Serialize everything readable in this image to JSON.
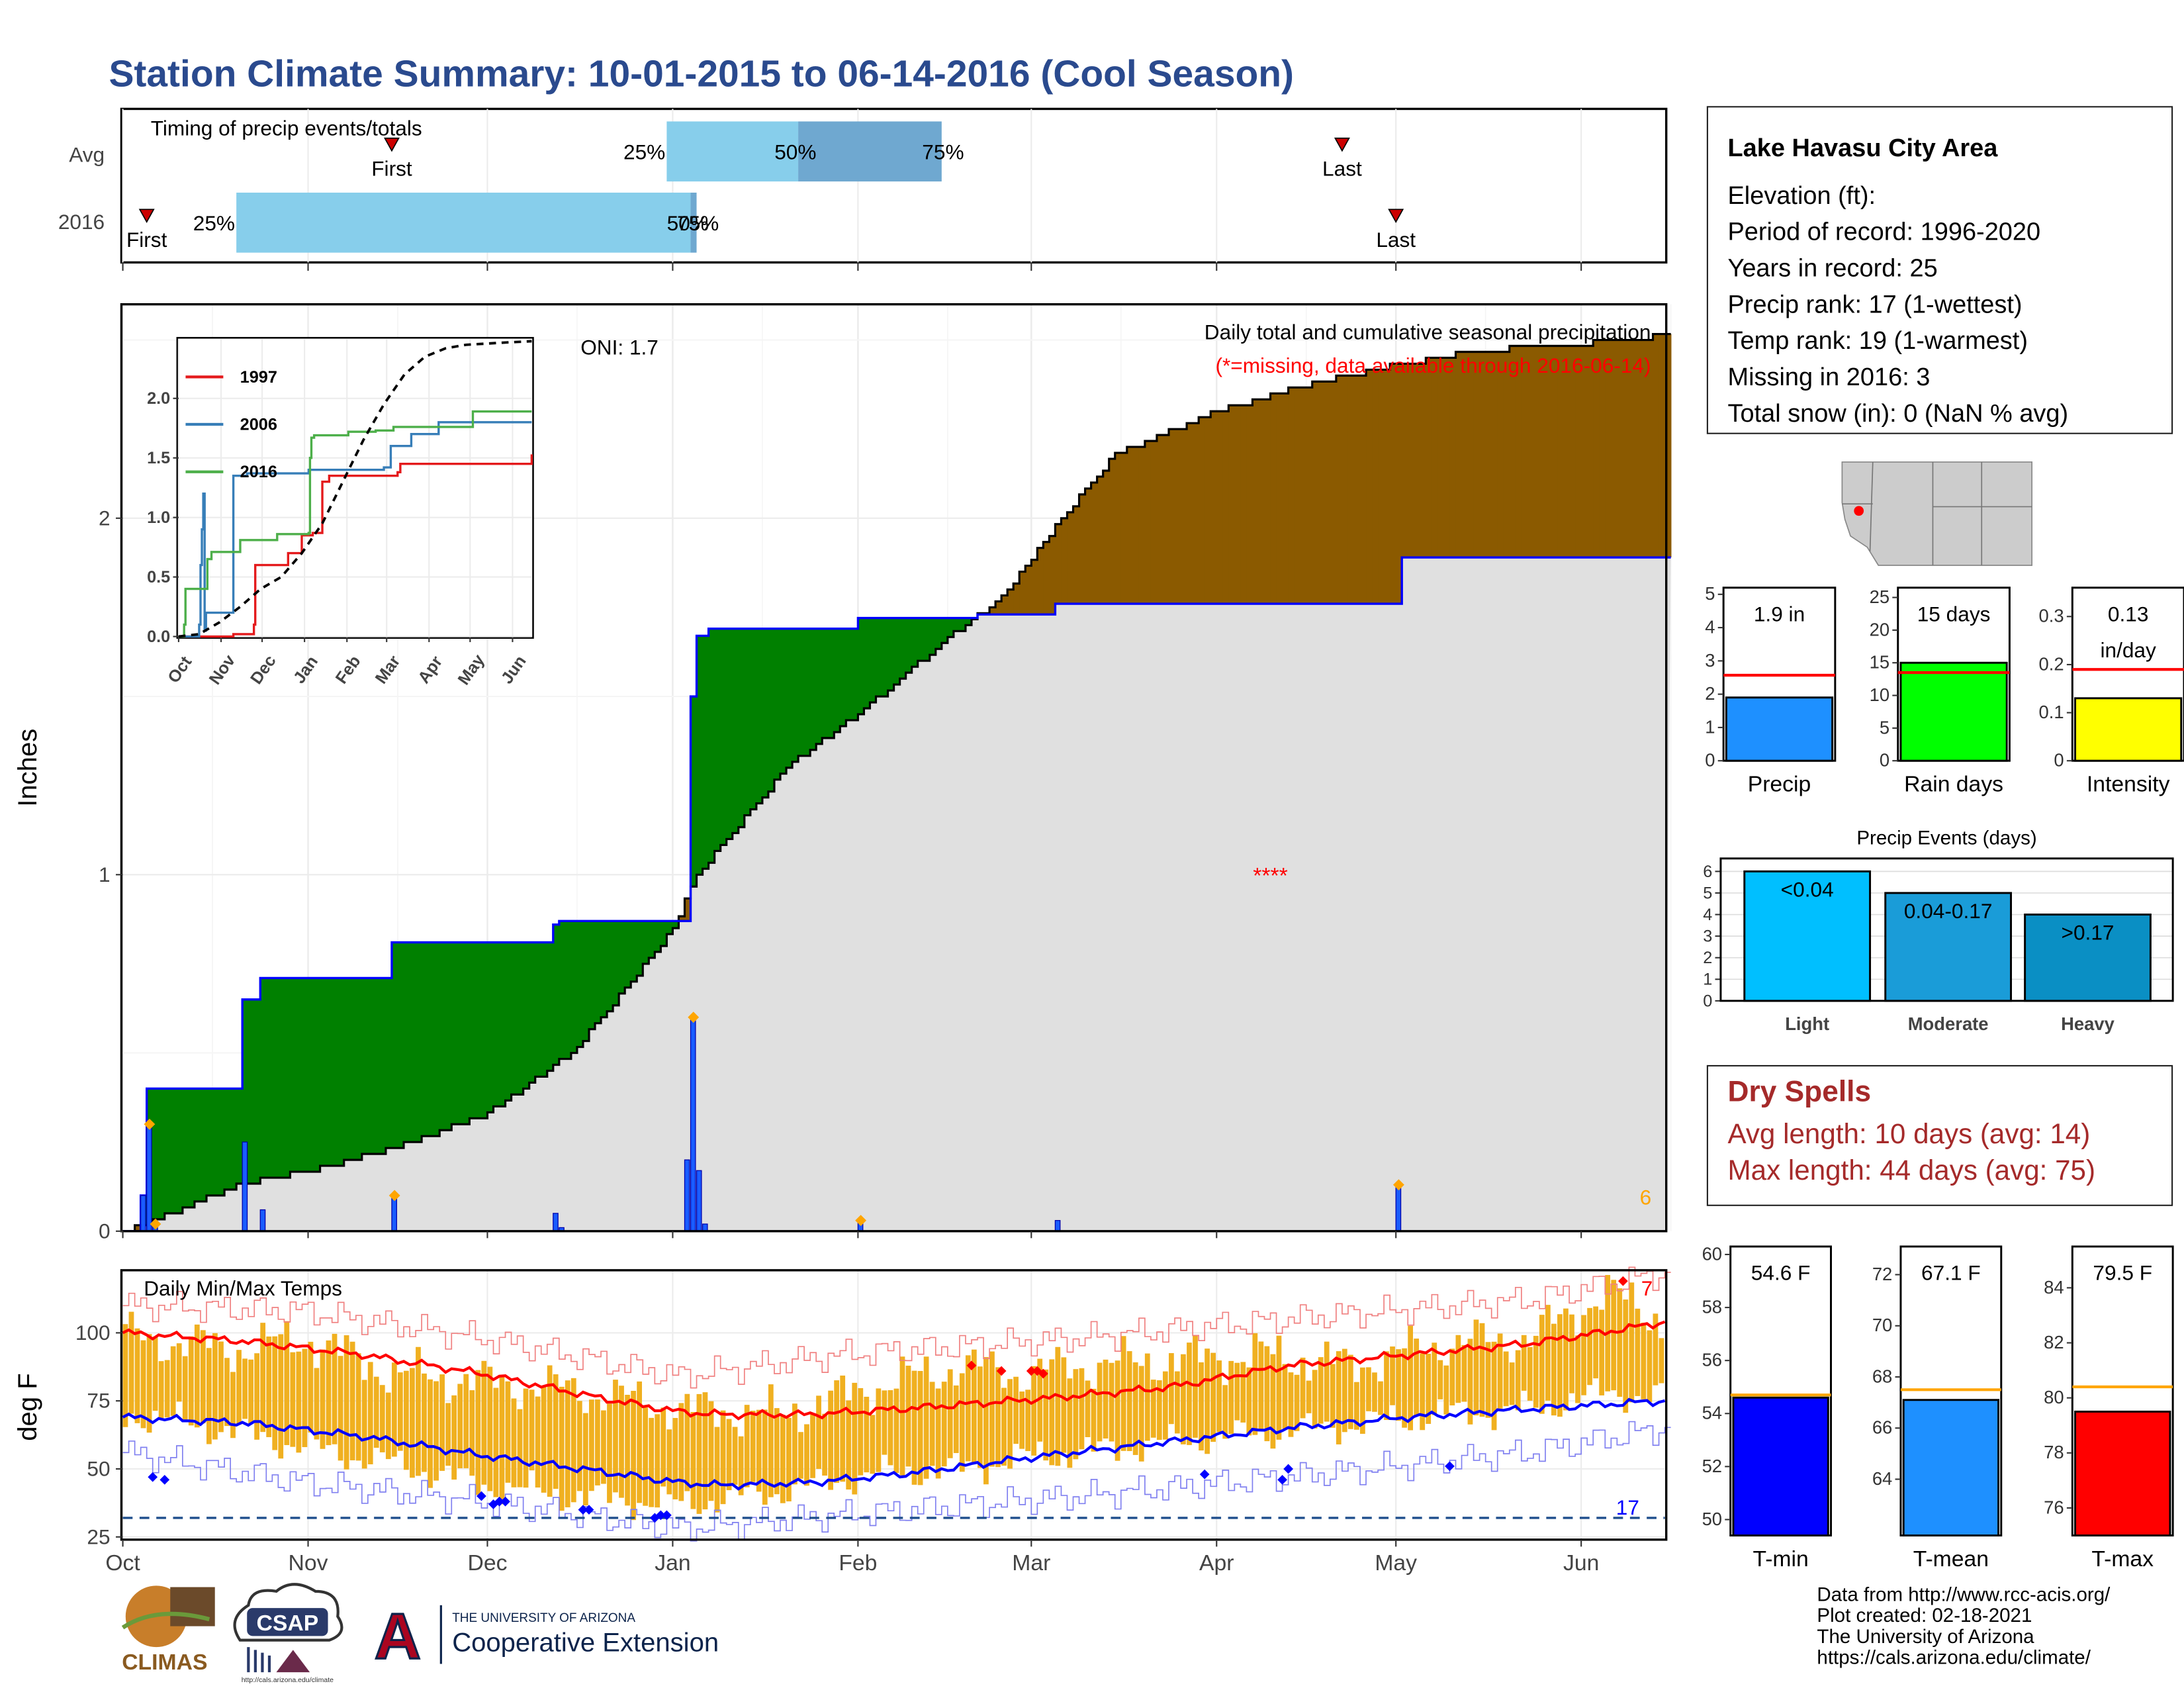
{
  "title": "Station Climate Summary: 10-01-2015 to 06-14-2016 (Cool Season)",
  "timing": {
    "label": "Timing of precip events/totals",
    "rows": [
      "Avg",
      "2016"
    ],
    "avg": {
      "first": "2015-11-15",
      "q25": "2015-12-31",
      "q50": "2016-01-22",
      "q75": "2016-02-15",
      "last": "2016-04-22"
    },
    "y2016": {
      "first": "2015-10-05",
      "q25": "2015-10-20",
      "q50": "2016-01-04",
      "q75": "2016-01-05",
      "last": "2016-05-01"
    },
    "first_label": "First",
    "last_label": "Last",
    "q25_label": "25%",
    "q50_label": "50%",
    "q75_label": "75%"
  },
  "chart_data": [
    {
      "type": "area",
      "subtitle": "Daily total and cumulative seasonal precipitation",
      "missing_note": "(*=missing, data available through 2016-06-14)",
      "oni": "ONI: 1.7",
      "ylabel": "Inches",
      "ylim": [
        0,
        2.6
      ],
      "yticks": [
        0,
        1,
        2
      ],
      "xticks": [
        "Oct",
        "Nov",
        "Dec",
        "Jan",
        "Feb",
        "Mar",
        "Apr",
        "May",
        "Jun"
      ],
      "missing_count": "6",
      "missing_marker": {
        "date": "2016-04-10",
        "value": 1.0
      },
      "cumulative_2016": [
        [
          "2015-10-01",
          0
        ],
        [
          "2015-10-04",
          0.1
        ],
        [
          "2015-10-05",
          0.4
        ],
        [
          "2015-10-20",
          0.4
        ],
        [
          "2015-10-21",
          0.65
        ],
        [
          "2015-10-24",
          0.71
        ],
        [
          "2015-11-15",
          0.81
        ],
        [
          "2015-12-12",
          0.86
        ],
        [
          "2015-12-13",
          0.87
        ],
        [
          "2016-01-03",
          0.87
        ],
        [
          "2016-01-04",
          1.5
        ],
        [
          "2016-01-05",
          1.67
        ],
        [
          "2016-01-07",
          1.69
        ],
        [
          "2016-02-01",
          1.72
        ],
        [
          "2016-02-21",
          1.73
        ],
        [
          "2016-03-05",
          1.76
        ],
        [
          "2016-05-01",
          1.76
        ],
        [
          "2016-05-02",
          1.89
        ],
        [
          "2016-06-14",
          1.89
        ]
      ],
      "cumulative_avg": [
        [
          "2015-10-01",
          0
        ],
        [
          "2015-10-05",
          0.02
        ],
        [
          "2015-10-20",
          0.13
        ],
        [
          "2015-11-01",
          0.17
        ],
        [
          "2015-11-15",
          0.23
        ],
        [
          "2015-12-01",
          0.33
        ],
        [
          "2015-12-15",
          0.5
        ],
        [
          "2015-12-25",
          0.7
        ],
        [
          "2016-01-01",
          0.85
        ],
        [
          "2016-01-05",
          1.0
        ],
        [
          "2016-01-10",
          1.1
        ],
        [
          "2016-01-20",
          1.3
        ],
        [
          "2016-02-01",
          1.45
        ],
        [
          "2016-02-15",
          1.65
        ],
        [
          "2016-02-25",
          1.78
        ],
        [
          "2016-03-05",
          1.98
        ],
        [
          "2016-03-15",
          2.18
        ],
        [
          "2016-04-01",
          2.3
        ],
        [
          "2016-04-15",
          2.37
        ],
        [
          "2016-05-01",
          2.43
        ],
        [
          "2016-05-15",
          2.47
        ],
        [
          "2016-06-01",
          2.49
        ],
        [
          "2016-06-14",
          2.51
        ]
      ],
      "daily": [
        [
          "2015-10-04",
          0.1
        ],
        [
          "2015-10-05",
          0.3
        ],
        [
          "2015-10-06",
          0.02
        ],
        [
          "2015-10-21",
          0.25
        ],
        [
          "2015-10-24",
          0.06
        ],
        [
          "2015-11-15",
          0.1
        ],
        [
          "2015-12-12",
          0.05
        ],
        [
          "2015-12-13",
          0.01
        ],
        [
          "2016-01-03",
          0.2
        ],
        [
          "2016-01-04",
          0.6
        ],
        [
          "2016-01-05",
          0.17
        ],
        [
          "2016-01-06",
          0.02
        ],
        [
          "2016-02-01",
          0.03
        ],
        [
          "2016-03-05",
          0.03
        ],
        [
          "2016-05-01",
          0.13
        ]
      ]
    },
    {
      "type": "line",
      "title": "",
      "xlabel": "",
      "ylabel": "",
      "xticks": [
        "Oct",
        "Nov",
        "Dec",
        "Jan",
        "Feb",
        "Mar",
        "Apr",
        "May",
        "Jun"
      ],
      "ylim": [
        0,
        2.45
      ],
      "yticks": [
        0.0,
        0.5,
        1.0,
        1.5,
        2.0
      ],
      "series": [
        {
          "name": "1997",
          "color": "#e41a1c",
          "values": [
            [
              0,
              0
            ],
            [
              25,
              0
            ],
            [
              40,
              0.02
            ],
            [
              55,
              0.1
            ],
            [
              56,
              0.6
            ],
            [
              80,
              0.7
            ],
            [
              90,
              0.85
            ],
            [
              98,
              0.87
            ],
            [
              105,
              1.3
            ],
            [
              110,
              1.35
            ],
            [
              160,
              1.38
            ],
            [
              162,
              1.45
            ],
            [
              258,
              1.53
            ]
          ]
        },
        {
          "name": "2006",
          "color": "#377eb8",
          "values": [
            [
              0,
              0
            ],
            [
              14,
              0
            ],
            [
              15,
              0.1
            ],
            [
              16,
              0.6
            ],
            [
              17,
              0.9
            ],
            [
              18,
              1.2
            ],
            [
              19,
              0.05
            ],
            [
              20,
              0.2
            ],
            [
              40,
              1.35
            ],
            [
              50,
              1.37
            ],
            [
              95,
              1.4
            ],
            [
              150,
              1.42
            ],
            [
              155,
              1.6
            ],
            [
              170,
              1.7
            ],
            [
              190,
              1.8
            ],
            [
              258,
              1.8
            ]
          ]
        },
        {
          "name": "2016",
          "color": "#4daf4a",
          "values": [
            [
              0,
              0
            ],
            [
              4,
              0.1
            ],
            [
              5,
              0.4
            ],
            [
              20,
              0.4
            ],
            [
              21,
              0.65
            ],
            [
              24,
              0.71
            ],
            [
              45,
              0.81
            ],
            [
              72,
              0.86
            ],
            [
              95,
              0.87
            ],
            [
              96,
              1.5
            ],
            [
              97,
              1.67
            ],
            [
              99,
              1.69
            ],
            [
              124,
              1.72
            ],
            [
              144,
              1.73
            ],
            [
              157,
              1.76
            ],
            [
              214,
              1.76
            ],
            [
              215,
              1.89
            ],
            [
              258,
              1.89
            ]
          ]
        },
        {
          "name": "Avg",
          "color": "#000000",
          "dashed": true,
          "values": [
            [
              0,
              0
            ],
            [
              15,
              0.02
            ],
            [
              30,
              0.12
            ],
            [
              45,
              0.25
            ],
            [
              60,
              0.4
            ],
            [
              75,
              0.5
            ],
            [
              90,
              0.7
            ],
            [
              105,
              0.95
            ],
            [
              120,
              1.3
            ],
            [
              135,
              1.65
            ],
            [
              150,
              1.95
            ],
            [
              165,
              2.2
            ],
            [
              180,
              2.35
            ],
            [
              195,
              2.42
            ],
            [
              210,
              2.45
            ],
            [
              240,
              2.47
            ],
            [
              258,
              2.48
            ]
          ]
        }
      ]
    },
    {
      "type": "bar",
      "title": "",
      "categories": [
        "Precip",
        "Rain days",
        "Intensity"
      ],
      "values": [
        1.9,
        15,
        0.13
      ],
      "averages": [
        2.57,
        13.5,
        0.19
      ],
      "ylims": [
        [
          0,
          5.2
        ],
        [
          0,
          26.5
        ],
        [
          0,
          0.36
        ]
      ],
      "yticks": [
        [
          0,
          1,
          2,
          3,
          4,
          5
        ],
        [
          0,
          5,
          10,
          15,
          20,
          25
        ],
        [
          0.0,
          0.1,
          0.2,
          0.3
        ]
      ],
      "labels": [
        "1.9 in",
        "15 days",
        "0.13 in/day"
      ],
      "colors": [
        "#1e90ff",
        "#00ff00",
        "#ffff00"
      ]
    },
    {
      "type": "bar",
      "title": "Precip Events (days)",
      "categories": [
        "Light",
        "Moderate",
        "Heavy"
      ],
      "values": [
        6,
        5,
        4
      ],
      "labels": [
        "<0.04",
        "0.04-0.17",
        ">0.17"
      ],
      "ylim": [
        0,
        6.6
      ],
      "yticks": [
        0,
        1,
        2,
        3,
        4,
        5,
        6
      ],
      "colors": [
        "#00bfff",
        "#1a9cd8",
        "#0a8fc4"
      ]
    },
    {
      "type": "area",
      "title": "Daily Min/Max Temps",
      "ylabel": "deg F",
      "ylim": [
        24,
        123
      ],
      "yticks": [
        25,
        50,
        75,
        100
      ],
      "xticks": [
        "Oct",
        "Nov",
        "Dec",
        "Jan",
        "Feb",
        "Mar",
        "Apr",
        "May",
        "Jun"
      ],
      "freeze_line": 32,
      "count_hot": "7",
      "count_cold": "17",
      "avg_max": [
        [
          0,
          100
        ],
        [
          20,
          97
        ],
        [
          40,
          92
        ],
        [
          60,
          85
        ],
        [
          80,
          76
        ],
        [
          93,
          71
        ],
        [
          100,
          70
        ],
        [
          115,
          70
        ],
        [
          130,
          72
        ],
        [
          155,
          76
        ],
        [
          175,
          80
        ],
        [
          195,
          88
        ],
        [
          215,
          92
        ],
        [
          235,
          96
        ],
        [
          250,
          101
        ],
        [
          258,
          104
        ]
      ],
      "avg_min": [
        [
          0,
          69
        ],
        [
          20,
          67
        ],
        [
          40,
          62
        ],
        [
          60,
          55
        ],
        [
          80,
          49
        ],
        [
          93,
          45
        ],
        [
          100,
          44
        ],
        [
          115,
          45
        ],
        [
          130,
          48
        ],
        [
          155,
          55
        ],
        [
          175,
          60
        ],
        [
          195,
          65
        ],
        [
          215,
          69
        ],
        [
          235,
          72
        ],
        [
          250,
          74
        ],
        [
          258,
          75
        ]
      ],
      "record_max": [
        [
          0,
          110
        ],
        [
          30,
          108
        ],
        [
          60,
          98
        ],
        [
          93,
          84
        ],
        [
          120,
          92
        ],
        [
          160,
          98
        ],
        [
          200,
          106
        ],
        [
          235,
          112
        ],
        [
          258,
          122
        ]
      ],
      "record_min": [
        [
          0,
          56
        ],
        [
          30,
          45
        ],
        [
          60,
          38
        ],
        [
          93,
          28
        ],
        [
          120,
          33
        ],
        [
          160,
          40
        ],
        [
          200,
          48
        ],
        [
          235,
          56
        ],
        [
          258,
          65
        ]
      ],
      "obs_max": [
        [
          0,
          99
        ],
        [
          10,
          96
        ],
        [
          20,
          94
        ],
        [
          30,
          98
        ],
        [
          45,
          85
        ],
        [
          60,
          82
        ],
        [
          75,
          79
        ],
        [
          93,
          72
        ],
        [
          110,
          70
        ],
        [
          125,
          80
        ],
        [
          140,
          88
        ],
        [
          150,
          85
        ],
        [
          160,
          88
        ],
        [
          175,
          90
        ],
        [
          190,
          92
        ],
        [
          205,
          88
        ],
        [
          220,
          96
        ],
        [
          235,
          98
        ],
        [
          248,
          115
        ],
        [
          258,
          104
        ]
      ],
      "obs_min": [
        [
          0,
          70
        ],
        [
          10,
          67
        ],
        [
          20,
          63
        ],
        [
          30,
          58
        ],
        [
          45,
          52
        ],
        [
          60,
          44
        ],
        [
          75,
          40
        ],
        [
          93,
          37
        ],
        [
          110,
          42
        ],
        [
          125,
          48
        ],
        [
          140,
          50
        ],
        [
          150,
          54
        ],
        [
          160,
          56
        ],
        [
          175,
          60
        ],
        [
          190,
          63
        ],
        [
          205,
          66
        ],
        [
          220,
          70
        ],
        [
          235,
          72
        ],
        [
          248,
          78
        ],
        [
          258,
          76
        ]
      ],
      "records_hot": [
        [
          142,
          88
        ],
        [
          147,
          86
        ],
        [
          152,
          86
        ],
        [
          153,
          86
        ],
        [
          154,
          85
        ],
        [
          251,
          119
        ]
      ],
      "records_cold": [
        [
          5,
          47
        ],
        [
          7,
          46
        ],
        [
          60,
          40
        ],
        [
          62,
          37
        ],
        [
          63,
          38
        ],
        [
          64,
          38
        ],
        [
          77,
          35
        ],
        [
          78,
          35
        ],
        [
          89,
          32
        ],
        [
          90,
          33
        ],
        [
          91,
          33
        ],
        [
          181,
          48
        ],
        [
          194,
          46
        ],
        [
          195,
          50
        ],
        [
          222,
          51
        ]
      ]
    },
    {
      "type": "bar",
      "title": "",
      "categories": [
        "T-min",
        "T-mean",
        "T-max"
      ],
      "values": [
        54.6,
        67.1,
        79.5
      ],
      "averages": [
        54.7,
        67.5,
        80.4
      ],
      "ylims": [
        [
          49.4,
          60.3
        ],
        [
          61.8,
          73.1
        ],
        [
          75.0,
          85.5
        ]
      ],
      "yticks": [
        [
          50,
          52,
          54,
          56,
          58,
          60
        ],
        [
          64,
          66,
          68,
          70,
          72
        ],
        [
          76,
          78,
          80,
          82,
          84
        ]
      ],
      "labels": [
        "54.6 F",
        "67.1 F",
        "79.5 F"
      ],
      "colors": [
        "#0000ff",
        "#1e90ff",
        "#ff0000"
      ]
    }
  ],
  "station": {
    "name": "Lake Havasu City Area",
    "elevation": "Elevation (ft):",
    "period": "Period of record: 1996-2020",
    "years": "Years in record: 25",
    "precip_rank": "Precip rank: 17 (1-wettest)",
    "temp_rank": "Temp rank: 19 (1-warmest)",
    "missing": "Missing in 2016: 3",
    "snow": "Total snow (in): 0 (NaN % avg)"
  },
  "dry_spells": {
    "title": "Dry Spells",
    "avg_length": "Avg length: 10 days (avg: 14)",
    "max_length": "Max length: 44 days (avg: 75)"
  },
  "credits": {
    "line1": "Data from http://www.rcc-acis.org/",
    "line2": "Plot created: 02-18-2021",
    "line3": "The University of Arizona",
    "line4": "https://cals.arizona.edu/climate/"
  },
  "logos": {
    "climas": "CLIMAS",
    "csap": "CSAP",
    "csap_url": "http://cals.arizona.edu/climate",
    "ua_line1": "THE UNIVERSITY OF ARIZONA",
    "ua_line2": "Cooperative Extension",
    "ua_letter": "A"
  },
  "colors": {
    "title": "#2a4a8e",
    "green": "#008000",
    "brown": "#8b5a00",
    "grey_fill": "#e0e0e0",
    "blue_line": "#0000ff",
    "bar_orange": "#f0b020"
  }
}
